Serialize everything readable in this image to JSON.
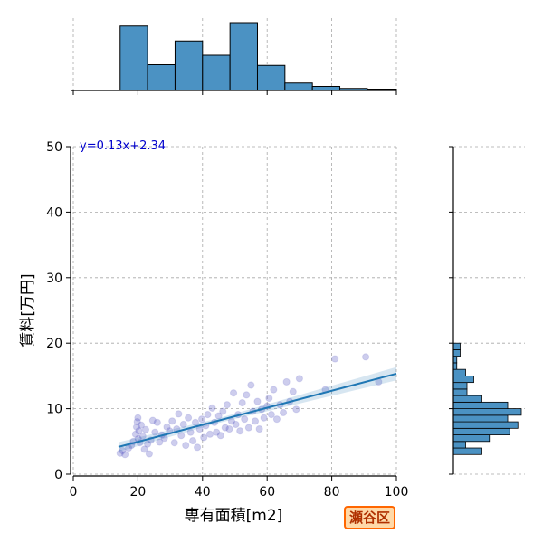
{
  "chart_data": {
    "type": "scatter",
    "xlabel": "専有面積[m2]",
    "ylabel": "賃料[万円]",
    "xlim": [
      0,
      100
    ],
    "ylim": [
      0,
      50
    ],
    "xticks": [
      0,
      20,
      40,
      60,
      80,
      100
    ],
    "yticks": [
      0,
      10,
      20,
      30,
      40,
      50
    ],
    "grid": true,
    "regression": {
      "equation_label": "y=0.13x+2.34",
      "slope": 0.13,
      "intercept": 2.34,
      "x_range": [
        14,
        100
      ],
      "line_color": "#1f77b4"
    },
    "point_color": "#4b4bbf",
    "points": [
      [
        14.5,
        3.2
      ],
      [
        15.2,
        3.6
      ],
      [
        16.0,
        3.0
      ],
      [
        17.1,
        4.0
      ],
      [
        18.0,
        4.4
      ],
      [
        18.6,
        5.0
      ],
      [
        19.3,
        6.1
      ],
      [
        19.6,
        7.2
      ],
      [
        19.8,
        8.0
      ],
      [
        20.0,
        8.6
      ],
      [
        20.1,
        5.4
      ],
      [
        20.3,
        6.6
      ],
      [
        20.6,
        4.8
      ],
      [
        21.0,
        7.5
      ],
      [
        21.5,
        5.8
      ],
      [
        22.0,
        3.8
      ],
      [
        22.4,
        6.8
      ],
      [
        23.0,
        4.6
      ],
      [
        23.5,
        3.1
      ],
      [
        24.0,
        5.2
      ],
      [
        24.6,
        8.2
      ],
      [
        25.3,
        6.4
      ],
      [
        26.0,
        7.9
      ],
      [
        26.7,
        4.9
      ],
      [
        27.4,
        6.0
      ],
      [
        28.2,
        5.5
      ],
      [
        29.0,
        7.2
      ],
      [
        29.8,
        6.6
      ],
      [
        30.6,
        8.1
      ],
      [
        31.3,
        4.8
      ],
      [
        32.0,
        6.9
      ],
      [
        32.6,
        9.2
      ],
      [
        33.4,
        5.9
      ],
      [
        34.1,
        7.6
      ],
      [
        34.8,
        4.4
      ],
      [
        35.6,
        8.6
      ],
      [
        36.3,
        6.4
      ],
      [
        37.0,
        5.1
      ],
      [
        37.8,
        7.9
      ],
      [
        38.4,
        4.1
      ],
      [
        39.1,
        6.9
      ],
      [
        39.8,
        8.4
      ],
      [
        40.4,
        5.6
      ],
      [
        41.0,
        7.4
      ],
      [
        41.6,
        9.1
      ],
      [
        42.3,
        6.1
      ],
      [
        43.0,
        10.1
      ],
      [
        43.7,
        7.9
      ],
      [
        44.3,
        6.4
      ],
      [
        45.0,
        8.9
      ],
      [
        45.6,
        5.9
      ],
      [
        46.3,
        9.6
      ],
      [
        47.0,
        7.1
      ],
      [
        47.6,
        10.6
      ],
      [
        48.3,
        6.9
      ],
      [
        49.0,
        8.1
      ],
      [
        49.6,
        12.4
      ],
      [
        50.3,
        7.6
      ],
      [
        51.0,
        9.1
      ],
      [
        51.6,
        6.6
      ],
      [
        52.3,
        10.9
      ],
      [
        53.0,
        8.4
      ],
      [
        53.6,
        12.1
      ],
      [
        54.3,
        7.1
      ],
      [
        55.0,
        13.6
      ],
      [
        55.6,
        9.6
      ],
      [
        56.3,
        8.1
      ],
      [
        57.0,
        11.1
      ],
      [
        57.6,
        6.9
      ],
      [
        58.3,
        9.9
      ],
      [
        59.0,
        8.6
      ],
      [
        60.0,
        10.4
      ],
      [
        60.6,
        11.6
      ],
      [
        61.3,
        9.1
      ],
      [
        62.0,
        12.9
      ],
      [
        63.0,
        8.4
      ],
      [
        64.0,
        10.6
      ],
      [
        65.0,
        9.4
      ],
      [
        66.0,
        14.1
      ],
      [
        67.0,
        11.1
      ],
      [
        68.0,
        12.6
      ],
      [
        69.0,
        9.9
      ],
      [
        70.0,
        14.6
      ],
      [
        78.0,
        12.9
      ],
      [
        81.0,
        17.6
      ],
      [
        90.5,
        17.9
      ],
      [
        94.5,
        14.1
      ]
    ],
    "marginal_x": {
      "bin_edges": [
        0,
        14.5,
        23,
        31.5,
        40,
        48.5,
        57,
        65.5,
        74,
        82.5,
        91,
        100
      ],
      "relative_heights": [
        0,
        0.95,
        0.38,
        0.73,
        0.52,
        1.0,
        0.37,
        0.11,
        0.06,
        0.03,
        0.02
      ]
    },
    "marginal_y": {
      "bin_edges": [
        3,
        4,
        5,
        6,
        7,
        8,
        9,
        10,
        11,
        12,
        13,
        14,
        15,
        16,
        17,
        18,
        19,
        20
      ],
      "relative_heights": [
        0.42,
        0.18,
        0.53,
        0.83,
        0.95,
        0.8,
        1.0,
        0.8,
        0.42,
        0.2,
        0.2,
        0.3,
        0.18,
        0.05,
        0.05,
        0.1,
        0.1
      ]
    },
    "hist_color": "#4b92c3"
  },
  "ward_label": "瀬谷区"
}
